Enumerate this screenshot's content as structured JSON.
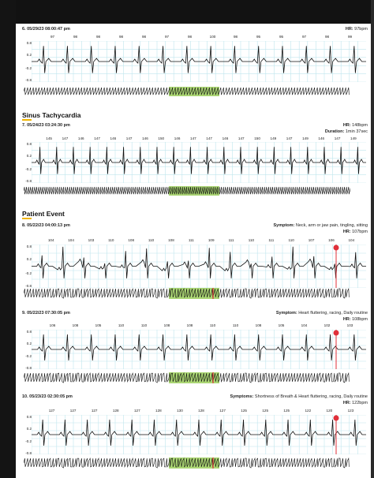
{
  "colors": {
    "grid": "#bfe6ee",
    "trace": "#111111",
    "highlight": "#9ccf5c",
    "marker": "#e0303a"
  },
  "strips": [
    {
      "id": 6,
      "header": "6. 05/29/23 08:00:47 pm",
      "right": [
        {
          "label": "HR:",
          "value": " 97bpm"
        }
      ],
      "hr": [
        "97",
        "98",
        "98",
        "98",
        "98",
        "97",
        "98",
        "100",
        "98",
        "95",
        "95",
        "97",
        "98",
        "99"
      ],
      "ylabels": [
        "0.8",
        "0.2",
        "-0.2",
        "-0.8"
      ],
      "marker": false
    },
    {
      "id": 7,
      "section": "Sinus Tachycardia",
      "header": "7. 05/24/23 03:24:30 pm",
      "right": [
        {
          "label": "HR:",
          "value": " 148bpm"
        },
        {
          "label": "Duration:",
          "value": " 1min 37sec"
        }
      ],
      "hr": [
        "145",
        "147",
        "146",
        "147",
        "146",
        "147",
        "146",
        "150",
        "146",
        "147",
        "147",
        "146",
        "147",
        "150",
        "149",
        "147",
        "149",
        "146",
        "147",
        "149"
      ],
      "ylabels": [
        "0.8",
        "0.2",
        "-0.2",
        "-0.8"
      ],
      "marker": false
    },
    {
      "id": 8,
      "section": "Patient Event",
      "header": "8. 05/22/23 04:00:13 pm",
      "right": [
        {
          "label": "Symptom:",
          "value": " Neck, arm or jaw pain, tingling, sitting"
        },
        {
          "label": "HR:",
          "value": " 107bpm"
        }
      ],
      "hr": [
        "104",
        "104",
        "103",
        "110",
        "108",
        "110",
        "108",
        "111",
        "109",
        "111",
        "110",
        "111",
        "110",
        "107",
        "106",
        "104"
      ],
      "ylabels": [
        "0.8",
        "0.2",
        "-0.2",
        "-0.8"
      ],
      "marker": true
    },
    {
      "id": 9,
      "header": "9. 05/22/23 07:30:05 pm",
      "right": [
        {
          "label": "Symptom:",
          "value": " Heart fluttering, racing, Daily routine"
        },
        {
          "label": "HR:",
          "value": " 108bpm"
        }
      ],
      "hr": [
        "106",
        "108",
        "105",
        "110",
        "110",
        "108",
        "108",
        "110",
        "110",
        "108",
        "105",
        "104",
        "102",
        "103"
      ],
      "ylabels": [
        "0.8",
        "0.2",
        "-0.2",
        "-0.8"
      ],
      "marker": true
    },
    {
      "id": 10,
      "header": "10. 05/23/23 02:30:05 pm",
      "right": [
        {
          "label": "Symptoms:",
          "value": " Shortness of Breath & Heart fluttering, racing, Daily routine"
        },
        {
          "label": "HR:",
          "value": " 122bpm"
        }
      ],
      "hr": [
        "127",
        "127",
        "127",
        "128",
        "127",
        "128",
        "130",
        "128",
        "127",
        "125",
        "125",
        "125",
        "122",
        "120",
        "123"
      ],
      "ylabels": [
        "0.8",
        "0.2",
        "-0.2",
        "-0.8"
      ],
      "marker": true
    }
  ]
}
